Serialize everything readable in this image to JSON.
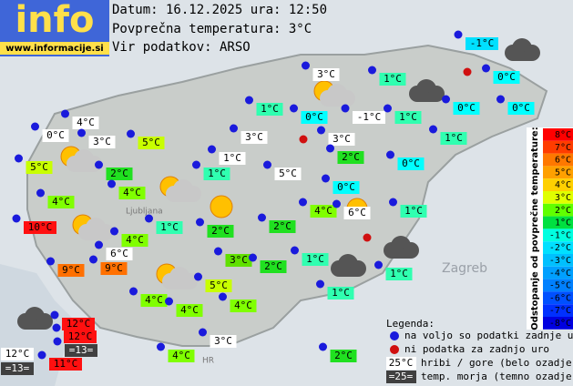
{
  "logo": {
    "title": "info",
    "url": "www.informacije.si"
  },
  "header": {
    "date": "Datum: 16.12.2025 ura: 12:50",
    "average": "Povprečna temperatura: 3°C",
    "source": "Vir podatkov: ARSO"
  },
  "places": [
    "Zagreb",
    "Ljubljana",
    "HR"
  ],
  "stations": [
    "-1°C",
    "3°C",
    "1°C",
    "0°C",
    "1°C",
    "0°C",
    "-1°C",
    "1°C",
    "0°C",
    "0°C",
    "4°C",
    "0°C",
    "3°C",
    "5°C",
    "3°C",
    "3°C",
    "1°C",
    "5°C",
    "2°C",
    "1°C",
    "2°C",
    "0°C",
    "1°C",
    "5°C",
    "4°C",
    "0°C",
    "4°C",
    "4°C",
    "6°C",
    "1°C",
    "10°C",
    "1°C",
    "2°C",
    "2°C",
    "4°C",
    "6°C",
    "3°C",
    "1°C",
    "2°C",
    "9°C",
    "9°C",
    "1°C",
    "5°C",
    "1°C",
    "4°C",
    "4°C",
    "4°C",
    "12°C",
    "12°C",
    "=13=",
    "3°C",
    "12°C",
    "=13=",
    "11°C",
    "4°C",
    "2°C"
  ],
  "legend": {
    "title": "Legenda:",
    "dot_available": "na voljo so podatki zadnje ure",
    "dot_missing": "ni podatka za zadnjo uro",
    "mountain_sample": "25°C",
    "mountain_text": "hribi / gore (belo ozadje)",
    "sea_sample": "=25=",
    "sea_text": "temp. morja (temno ozadje)"
  },
  "scale": {
    "title": "Odstopanje od povprečne temperature:",
    "labels": [
      "8°C",
      "7°C",
      "6°C",
      "5°C",
      "4°C",
      "3°C",
      "2°C",
      "1°C",
      "-1°C",
      "-2°C",
      "-3°C",
      "-4°C",
      "-5°C",
      "-6°C",
      "-7°C",
      "-8°C"
    ]
  }
}
